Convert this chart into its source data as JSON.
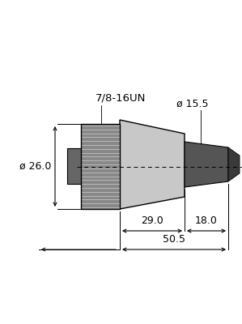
{
  "bg_color": "#ffffff",
  "lc": "#000000",
  "knurl_color": "#888888",
  "knurl_line_color": "#cccccc",
  "body_color": "#c8c8c8",
  "body_edge": "#555555",
  "back_color": "#666666",
  "cable_color": "#555555",
  "cable_tip_color": "#3a3a3a",
  "texts": {
    "label_78": "7/8-16UN",
    "label_d155": "ø 15.5",
    "label_d260": "ø 26.0",
    "label_290": "29.0",
    "label_180": "18.0",
    "label_505": "50.5"
  },
  "fontsize": 9
}
